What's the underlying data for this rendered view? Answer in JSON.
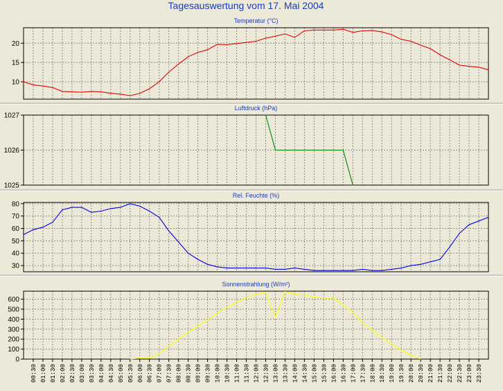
{
  "page": {
    "title": "Tagesauswertung vom 17. Mai 2004"
  },
  "chart_data": [
    {
      "type": "line",
      "title": "Temperatur (°C)",
      "ylim": [
        5.5,
        24
      ],
      "yticks": [
        10,
        15,
        20
      ],
      "grid": true,
      "color": "#e00000",
      "x": [
        "00:00",
        "00:30",
        "01:00",
        "01:30",
        "02:00",
        "02:30",
        "03:00",
        "03:30",
        "04:00",
        "04:30",
        "05:00",
        "05:30",
        "06:00",
        "06:30",
        "07:00",
        "07:30",
        "08:00",
        "08:30",
        "09:00",
        "09:30",
        "10:00",
        "10:30",
        "11:00",
        "11:30",
        "12:00",
        "12:30",
        "13:00",
        "13:30",
        "14:00",
        "14:30",
        "15:00",
        "15:30",
        "16:00",
        "16:30",
        "17:00",
        "17:30",
        "18:00",
        "18:30",
        "19:00",
        "19:30",
        "20:00",
        "20:30",
        "21:00",
        "21:30",
        "22:00",
        "22:30",
        "23:00",
        "23:30",
        "24:00"
      ],
      "values": [
        10,
        9.2,
        8.9,
        8.5,
        7.5,
        7.4,
        7.3,
        7.5,
        7.4,
        7,
        6.8,
        6.4,
        7,
        8.2,
        10,
        12.5,
        14.6,
        16.5,
        17.6,
        18.3,
        19.7,
        19.6,
        19.9,
        20.2,
        20.5,
        21.3,
        21.8,
        22.4,
        21.5,
        23.2,
        23.4,
        23.4,
        23.4,
        23.6,
        22.8,
        23.2,
        23.3,
        22.9,
        22.2,
        21,
        20.5,
        19.5,
        18.6,
        17,
        15.7,
        14.3,
        14,
        13.8,
        13.1
      ]
    },
    {
      "type": "line",
      "title": "Luftdruck (hPa)",
      "ylim": [
        1025,
        1027
      ],
      "yticks": [
        1025,
        1026,
        1027
      ],
      "grid": true,
      "color": "#008000",
      "x": [
        "12:30",
        "13:00",
        "16:30",
        "17:00"
      ],
      "values": [
        1027,
        1026,
        1026,
        1025
      ]
    },
    {
      "type": "line",
      "title": "Rel. Feuchte (%)",
      "ylim": [
        25,
        81
      ],
      "yticks": [
        30,
        40,
        50,
        60,
        70,
        80
      ],
      "grid": true,
      "color": "#0000e0",
      "x": [
        "00:00",
        "00:30",
        "01:00",
        "01:30",
        "02:00",
        "02:30",
        "03:00",
        "03:30",
        "04:00",
        "04:30",
        "05:00",
        "05:30",
        "06:00",
        "06:30",
        "07:00",
        "07:30",
        "08:00",
        "08:30",
        "09:00",
        "09:30",
        "10:00",
        "10:30",
        "11:00",
        "11:30",
        "12:00",
        "12:30",
        "13:00",
        "13:30",
        "14:00",
        "14:30",
        "15:00",
        "15:30",
        "16:00",
        "16:30",
        "17:00",
        "17:30",
        "18:00",
        "18:30",
        "19:00",
        "19:30",
        "20:00",
        "20:30",
        "21:00",
        "21:30",
        "22:00",
        "22:30",
        "23:00",
        "23:30",
        "24:00"
      ],
      "values": [
        55,
        59,
        61,
        65,
        75,
        77,
        77,
        73,
        74,
        76,
        77,
        80,
        78,
        74,
        69,
        58,
        49,
        40,
        35,
        31,
        29,
        28,
        28,
        28,
        28,
        28,
        27,
        27,
        28,
        27,
        26,
        26,
        26,
        26,
        26,
        27,
        26,
        26,
        27,
        28,
        30,
        31,
        33,
        35,
        45,
        56,
        63,
        66,
        69
      ]
    },
    {
      "type": "line",
      "title": "Sonnenstrahlung (W/m²)",
      "ylim": [
        0,
        680
      ],
      "yticks": [
        0,
        100,
        200,
        300,
        400,
        500,
        600
      ],
      "grid": true,
      "color": "#ffff00",
      "x": [
        "05:30",
        "06:00",
        "06:30",
        "07:00",
        "07:30",
        "08:00",
        "08:30",
        "09:00",
        "09:30",
        "10:00",
        "10:30",
        "11:00",
        "11:30",
        "12:00",
        "12:30",
        "13:00",
        "13:30",
        "14:00",
        "14:30",
        "15:00",
        "15:30",
        "16:00",
        "16:30",
        "17:00",
        "17:30",
        "18:00",
        "18:30",
        "19:00",
        "19:30",
        "20:00",
        "20:30"
      ],
      "values": [
        0,
        10,
        10,
        60,
        130,
        200,
        270,
        330,
        390,
        460,
        520,
        570,
        610,
        650,
        670,
        420,
        675,
        650,
        640,
        620,
        610,
        610,
        540,
        470,
        360,
        290,
        220,
        150,
        90,
        40,
        0
      ]
    }
  ],
  "x_axis": {
    "tick_labels": [
      "00:30",
      "01:00",
      "01:30",
      "02:00",
      "02:30",
      "03:00",
      "03:30",
      "04:00",
      "04:30",
      "05:00",
      "05:30",
      "06:00",
      "06:30",
      "07:00",
      "07:30",
      "08:00",
      "08:30",
      "09:00",
      "09:30",
      "10:00",
      "10:30",
      "11:00",
      "11:30",
      "12:00",
      "12:30",
      "13:00",
      "13:30",
      "14:00",
      "14:30",
      "15:00",
      "15:30",
      "16:00",
      "16:30",
      "17:00",
      "17:30",
      "18:00",
      "18:30",
      "19:00",
      "19:30",
      "20:00",
      "20:30",
      "21:00",
      "21:30",
      "22:00",
      "22:30",
      "23:00",
      "23:30"
    ]
  }
}
